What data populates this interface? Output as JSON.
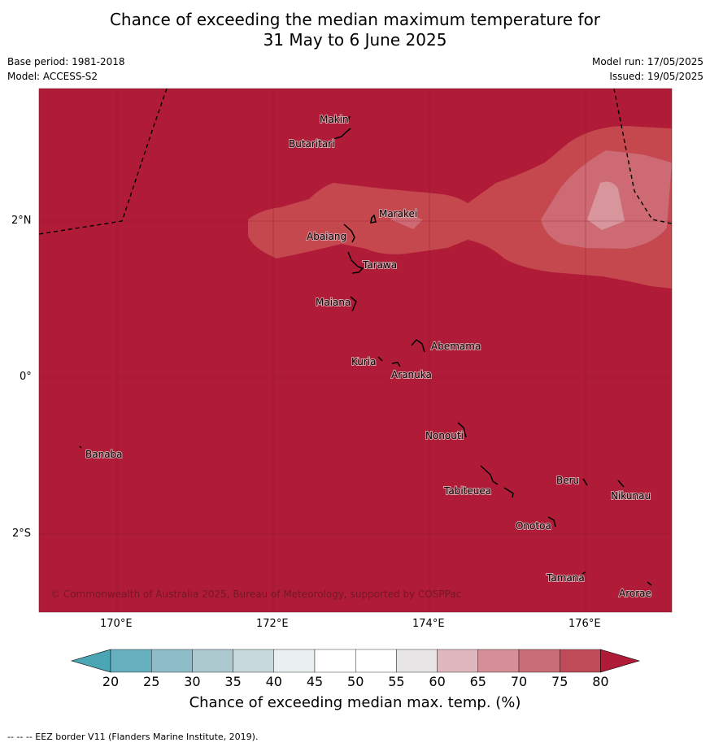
{
  "title": {
    "line1": "Chance of exceeding the median maximum temperature for",
    "line2": "31 May to 6 June 2025"
  },
  "meta": {
    "base_period": "Base period: 1981-2018",
    "model": "Model: ACCESS-S2",
    "model_run": "Model run: 17/05/2025",
    "issued": "Issued: 19/05/2025"
  },
  "map": {
    "copyright": "© Commonwealth of Australia 2025, Bureau of Meteorology, supported by COSPPac",
    "lat_labels": [
      "2°N",
      "0°",
      "2°S"
    ],
    "lon_labels": [
      "170°E",
      "172°E",
      "174°E",
      "176°E"
    ],
    "islands": [
      "Makin",
      "Butaritari",
      "Marakei",
      "Abaiang",
      "Tarawa",
      "Maiana",
      "Abemama",
      "Kuria",
      "Aranuka",
      "Banaba",
      "Nonouti",
      "Beru",
      "Nikunau",
      "Tabiteuea",
      "Onotoa",
      "Tamana",
      "Arorae"
    ],
    "colors": {
      "above_80": "#b01c38",
      "band_70_75": "#c5484f",
      "band_65_70": "#cd6a73",
      "band_60_65": "#d9959c"
    }
  },
  "colorbar": {
    "ticks": [
      "20",
      "25",
      "30",
      "35",
      "40",
      "45",
      "50",
      "55",
      "60",
      "65",
      "70",
      "75",
      "80"
    ],
    "colors": [
      "#66afbe",
      "#8ebdc8",
      "#abc9cf",
      "#c8d9dc",
      "#eaeff1",
      "#ffffff",
      "#ffffff",
      "#e8e5e6",
      "#dfb8bf",
      "#d48f97",
      "#c96d76",
      "#c04b58"
    ],
    "under_color": "#4aa5b4",
    "over_color": "#b01c38",
    "label": "Chance of exceeding median max. temp. (%)"
  },
  "footnote": "--  --  -- EEZ border V11 (Flanders Marine Institute, 2019)."
}
